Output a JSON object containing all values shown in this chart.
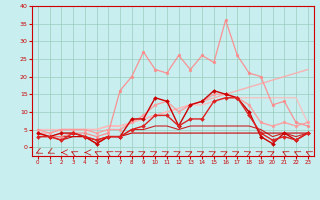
{
  "xlim": [
    -0.5,
    23.5
  ],
  "ylim": [
    -2.5,
    40
  ],
  "yticks": [
    0,
    5,
    10,
    15,
    20,
    25,
    30,
    35,
    40
  ],
  "xticks": [
    0,
    1,
    2,
    3,
    4,
    5,
    6,
    7,
    8,
    9,
    10,
    11,
    12,
    13,
    14,
    15,
    16,
    17,
    18,
    19,
    20,
    21,
    22,
    23
  ],
  "bg_color": "#c8eef0",
  "grid_color": "#99ccbb",
  "series": [
    {
      "x": [
        0,
        1,
        2,
        3,
        4,
        5,
        6,
        7,
        8,
        9,
        10,
        11,
        12,
        13,
        14,
        15,
        16,
        17,
        18,
        19,
        20,
        21,
        22,
        23
      ],
      "y": [
        4,
        3,
        4,
        4,
        3,
        1,
        3,
        3,
        8,
        8,
        14,
        13,
        6,
        12,
        13,
        16,
        15,
        14,
        10,
        3,
        1,
        4,
        2,
        4
      ],
      "color": "#cc0000",
      "lw": 1.0,
      "marker": "D",
      "ms": 2.0,
      "alpha": 1.0,
      "zorder": 5
    },
    {
      "x": [
        0,
        1,
        2,
        3,
        4,
        5,
        6,
        7,
        8,
        9,
        10,
        11,
        12,
        13,
        14,
        15,
        16,
        17,
        18,
        19,
        20,
        21,
        22,
        23
      ],
      "y": [
        3,
        3,
        2,
        3,
        3,
        2,
        3,
        3,
        4,
        4,
        4,
        4,
        4,
        4,
        4,
        4,
        4,
        4,
        4,
        4,
        4,
        4,
        4,
        4
      ],
      "color": "#cc0000",
      "lw": 0.8,
      "marker": null,
      "ms": 0,
      "alpha": 1.0,
      "zorder": 4
    },
    {
      "x": [
        0,
        1,
        2,
        3,
        4,
        5,
        6,
        7,
        8,
        9,
        10,
        11,
        12,
        13,
        14,
        15,
        16,
        17,
        18,
        19,
        20,
        21,
        22,
        23
      ],
      "y": [
        4,
        3,
        3,
        3,
        3,
        1,
        3,
        3,
        5,
        5,
        6,
        6,
        5,
        6,
        6,
        6,
        6,
        6,
        6,
        5,
        3,
        4,
        3,
        4
      ],
      "color": "#cc0000",
      "lw": 0.8,
      "marker": null,
      "ms": 0,
      "alpha": 0.85,
      "zorder": 3
    },
    {
      "x": [
        0,
        1,
        2,
        3,
        4,
        5,
        6,
        7,
        8,
        9,
        10,
        11,
        12,
        13,
        14,
        15,
        16,
        17,
        18,
        19,
        20,
        21,
        22,
        23
      ],
      "y": [
        3,
        3,
        2,
        4,
        3,
        2,
        3,
        3,
        5,
        6,
        9,
        9,
        6,
        8,
        8,
        13,
        14,
        14,
        9,
        4,
        2,
        3,
        2,
        4
      ],
      "color": "#dd2222",
      "lw": 1.0,
      "marker": "D",
      "ms": 2.0,
      "alpha": 1.0,
      "zorder": 5
    },
    {
      "x": [
        0,
        1,
        2,
        3,
        4,
        5,
        6,
        7,
        8,
        9,
        10,
        11,
        12,
        13,
        14,
        15,
        16,
        17,
        18,
        19,
        20,
        21,
        22,
        23
      ],
      "y": [
        4,
        4,
        5,
        5,
        5,
        5,
        6,
        6,
        7,
        8,
        9,
        10,
        11,
        12,
        13,
        14,
        15,
        16,
        17,
        18,
        19,
        20,
        21,
        22
      ],
      "color": "#ffaaaa",
      "lw": 1.0,
      "marker": null,
      "ms": 0,
      "alpha": 0.9,
      "zorder": 2
    },
    {
      "x": [
        0,
        1,
        2,
        3,
        4,
        5,
        6,
        7,
        8,
        9,
        10,
        11,
        12,
        13,
        14,
        15,
        16,
        17,
        18,
        19,
        20,
        21,
        22,
        23
      ],
      "y": [
        5,
        5,
        5,
        5,
        5,
        5,
        6,
        6,
        7,
        8,
        9,
        10,
        11,
        12,
        12,
        13,
        14,
        14,
        14,
        14,
        14,
        14,
        14,
        7
      ],
      "color": "#ffbbbb",
      "lw": 1.0,
      "marker": null,
      "ms": 0,
      "alpha": 0.85,
      "zorder": 2
    },
    {
      "x": [
        0,
        1,
        2,
        3,
        4,
        5,
        6,
        7,
        8,
        9,
        10,
        11,
        12,
        13,
        14,
        15,
        16,
        17,
        18,
        19,
        20,
        21,
        22,
        23
      ],
      "y": [
        4,
        3,
        3,
        4,
        4,
        3,
        4,
        16,
        20,
        27,
        22,
        21,
        26,
        22,
        26,
        24,
        36,
        26,
        21,
        20,
        12,
        13,
        7,
        6
      ],
      "color": "#ff8888",
      "lw": 0.9,
      "marker": "o",
      "ms": 2.0,
      "alpha": 0.9,
      "zorder": 4
    },
    {
      "x": [
        0,
        1,
        2,
        3,
        4,
        5,
        6,
        7,
        8,
        9,
        10,
        11,
        12,
        13,
        14,
        15,
        16,
        17,
        18,
        19,
        20,
        21,
        22,
        23
      ],
      "y": [
        5,
        4,
        5,
        5,
        5,
        4,
        5,
        5,
        7,
        9,
        12,
        13,
        10,
        12,
        13,
        15,
        15,
        14,
        12,
        7,
        6,
        7,
        6,
        7
      ],
      "color": "#ff9999",
      "lw": 1.0,
      "marker": "o",
      "ms": 2.0,
      "alpha": 0.9,
      "zorder": 4
    }
  ],
  "wind_directions": [
    225,
    225,
    270,
    315,
    270,
    315,
    315,
    45,
    45,
    45,
    45,
    45,
    45,
    45,
    45,
    45,
    45,
    45,
    45,
    45,
    45,
    315,
    315,
    315
  ],
  "arrow_color": "#cc0000"
}
